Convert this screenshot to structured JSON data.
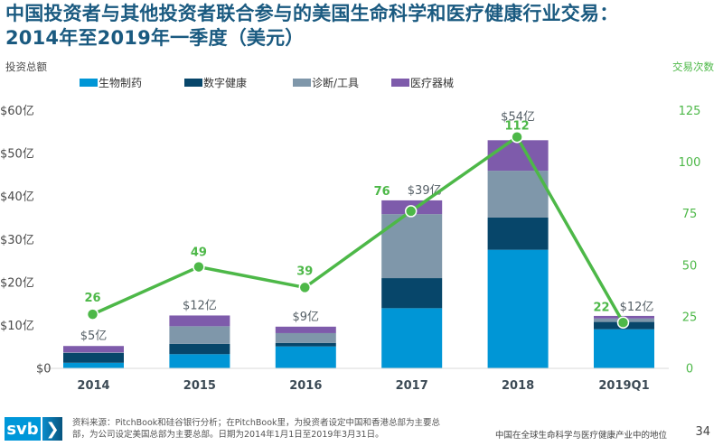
{
  "title_lines": [
    "中国投资者与其他投资者联合参与的美国生命科学和医疗健康行业交易：",
    "2014年至2019年一季度（美元）"
  ],
  "chart_data": {
    "type": "bar",
    "subtype": "stacked bar with line on secondary axis",
    "title": "中国投资者与其他投资者联合参与的美国生命科学和医疗健康行业交易：2014年至2019年一季度（美元）",
    "categories": [
      "2014",
      "2015",
      "2016",
      "2017",
      "2018",
      "2019Q1"
    ],
    "ylabel": "投资总额",
    "y2label": "交易次数",
    "ylim": [
      0,
      60
    ],
    "y2lim": [
      0,
      125
    ],
    "yticks": [
      "$0",
      "$10亿",
      "$20亿",
      "$30亿",
      "$40亿",
      "$50亿",
      "$60亿"
    ],
    "yticks_values": [
      0,
      10,
      20,
      30,
      40,
      50,
      60
    ],
    "y2ticks": [
      "0",
      "25",
      "50",
      "75",
      "100",
      "125"
    ],
    "y2ticks_values": [
      0,
      25,
      50,
      75,
      100,
      125
    ],
    "grid": false,
    "legend_position": "top",
    "series": [
      {
        "name": "生物制药",
        "kind": "bar",
        "color": "#0096d6",
        "values": [
          1.2,
          3.2,
          5.0,
          13.9,
          27.5,
          9.0
        ]
      },
      {
        "name": "数字健康",
        "kind": "bar",
        "color": "#07466a",
        "values": [
          2.3,
          2.4,
          0.8,
          7.0,
          7.5,
          1.7
        ]
      },
      {
        "name": "诊断/工具",
        "kind": "bar",
        "color": "#7f97aa",
        "values": [
          0.1,
          4.1,
          2.3,
          14.9,
          10.9,
          0.8
        ]
      },
      {
        "name": "医疗器械",
        "kind": "bar",
        "color": "#7e5bab",
        "values": [
          1.5,
          2.5,
          1.5,
          3.2,
          7.1,
          0.6
        ]
      },
      {
        "name": "交易次数",
        "kind": "line",
        "axis": "right",
        "color": "#4db848",
        "values": [
          26,
          49,
          39,
          76,
          112,
          22
        ]
      }
    ],
    "total_labels": [
      "$5亿",
      "$12亿",
      "$9亿",
      "$39亿",
      "$54亿",
      "$12亿"
    ],
    "deal_labels": [
      "26",
      "49",
      "39",
      "76",
      "112",
      "22"
    ]
  },
  "footer": {
    "logo_text": "svb",
    "logo_chevron": "❯",
    "source_text": "资料来源：PitchBook和硅谷银行分析；在PitchBook里，为投资者设定中国和香港总部为主要总部，为公司设定美国总部为主要总部。日期为2014年1月1日至2019年3月31日。",
    "right_text": "中国在全球生命科学与医疗健康产业中的地位",
    "page_number": "34"
  }
}
